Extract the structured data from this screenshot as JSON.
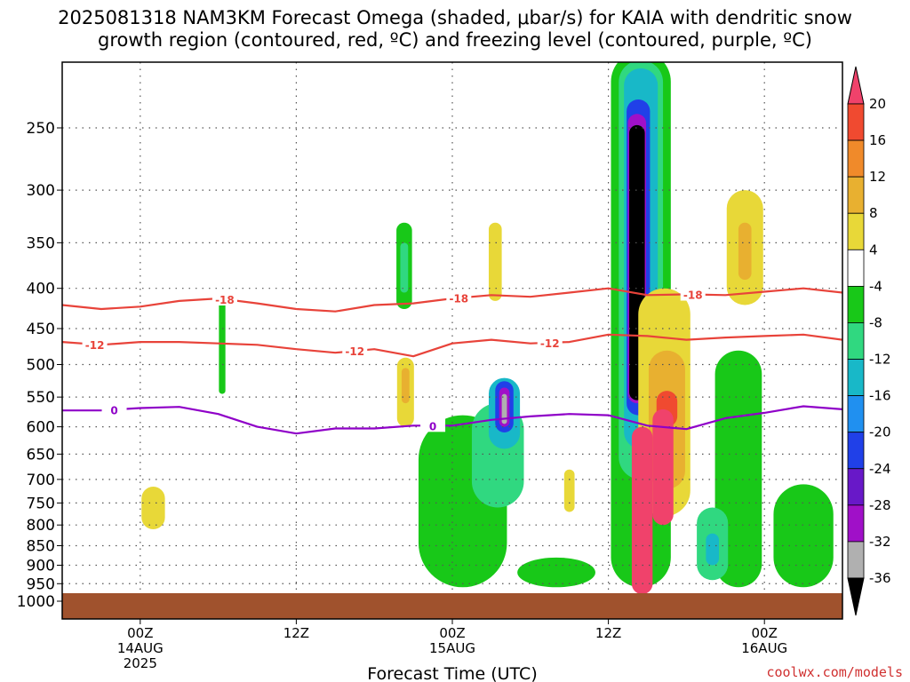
{
  "title_line1": "2025081318 NAM3KM Forecast Omega (shaded, μbar/s) for KAIA with dendritic snow",
  "title_line2": "growth region (contoured, red, ºC) and freezing level (contoured, purple, ºC)",
  "credit": "coolwx.com/models",
  "colors": {
    "ground": "#a0522d",
    "dendritic_contour": "#e8433a",
    "freezing_contour": "#8f00c8",
    "grid": "#555555"
  },
  "chart_data": {
    "type": "heatmap",
    "xlabel": "Forecast Time (UTC)",
    "ylabel": "",
    "x_range_hours": [
      -6,
      54
    ],
    "y_axis": "pressure (hPa), log scale, reversed",
    "y_ticks": [
      "250",
      "300",
      "350",
      "400",
      "450",
      "500",
      "550",
      "600",
      "650",
      "700",
      "750",
      "800",
      "850",
      "900",
      "950",
      "1000"
    ],
    "x_ticks": [
      {
        "hour": 0,
        "line1": "00Z",
        "line2": "14AUG",
        "line3": "2025"
      },
      {
        "hour": 12,
        "line1": "12Z",
        "line2": "",
        "line3": ""
      },
      {
        "hour": 24,
        "line1": "00Z",
        "line2": "15AUG",
        "line3": ""
      },
      {
        "hour": 36,
        "line1": "12Z",
        "line2": "",
        "line3": ""
      },
      {
        "hour": 48,
        "line1": "00Z",
        "line2": "16AUG",
        "line3": ""
      }
    ],
    "grid": true,
    "colorbar": {
      "labels": [
        "20",
        "16",
        "12",
        "8",
        "4",
        "-4",
        "-8",
        "-12",
        "-16",
        "-20",
        "-24",
        "-28",
        "-32",
        "-36"
      ],
      "colors": [
        "#f0426b",
        "#f04a30",
        "#f08a2a",
        "#e8b030",
        "#e8d838",
        "#ffffff",
        "#18c818",
        "#30d880",
        "#18b8c8",
        "#2090f0",
        "#2040e8",
        "#6818c8",
        "#a010c8",
        "#b0b0b0",
        "#000000"
      ]
    },
    "contours": [
      {
        "name": "dendritic -18",
        "label": "-18",
        "color": "#e8433a",
        "hours": [
          -6,
          -3,
          0,
          3,
          6,
          9,
          12,
          15,
          18,
          21,
          24,
          27,
          30,
          33,
          36,
          39,
          42,
          45,
          48,
          51,
          54
        ],
        "pressure": [
          420,
          425,
          422,
          415,
          412,
          418,
          425,
          428,
          420,
          418,
          412,
          408,
          410,
          405,
          400,
          408,
          407,
          408,
          404,
          400,
          405
        ],
        "label_hours": [
          6.5,
          24.5,
          42.5
        ]
      },
      {
        "name": "dendritic -12",
        "label": "-12",
        "color": "#e8433a",
        "hours": [
          -6,
          -3,
          0,
          3,
          6,
          9,
          12,
          15,
          18,
          21,
          24,
          27,
          30,
          33,
          36,
          39,
          42,
          45,
          48,
          51,
          54
        ],
        "pressure": [
          468,
          472,
          468,
          468,
          470,
          472,
          478,
          483,
          478,
          488,
          470,
          465,
          470,
          468,
          458,
          460,
          465,
          462,
          460,
          458,
          465
        ],
        "label_hours": [
          -3.5,
          16.5,
          31.5
        ]
      },
      {
        "name": "freezing 0",
        "label": "0",
        "color": "#8f00c8",
        "hours": [
          -6,
          -3,
          0,
          3,
          6,
          9,
          12,
          15,
          18,
          21,
          24,
          27,
          30,
          33,
          36,
          39,
          42,
          45,
          48,
          51,
          54
        ],
        "pressure": [
          572,
          572,
          568,
          566,
          578,
          600,
          612,
          603,
          603,
          598,
          598,
          588,
          582,
          578,
          580,
          598,
          604,
          585,
          576,
          565,
          570
        ],
        "label_hours": [
          -2,
          22.5
        ]
      }
    ],
    "omega_regions": [
      {
        "category": "4",
        "hour": 1,
        "p_top": 715,
        "p_bottom": 810,
        "width_h": 1.8
      },
      {
        "category": "-4",
        "hour": 6.3,
        "p_top": 410,
        "p_bottom": 545,
        "width_h": 0.5
      },
      {
        "category": "-4",
        "hour": 20.3,
        "p_top": 330,
        "p_bottom": 425,
        "width_h": 1.2
      },
      {
        "category": "-8",
        "hour": 20.3,
        "p_top": 350,
        "p_bottom": 405,
        "width_h": 0.6
      },
      {
        "category": "4",
        "hour": 20.4,
        "p_top": 490,
        "p_bottom": 600,
        "width_h": 1.3
      },
      {
        "category": "8",
        "hour": 20.4,
        "p_top": 505,
        "p_bottom": 560,
        "width_h": 0.6
      },
      {
        "category": "-4",
        "hour": 24.8,
        "p_top": 580,
        "p_bottom": 960,
        "width_h": 6.8
      },
      {
        "category": "-8",
        "hour": 27.5,
        "p_top": 560,
        "p_bottom": 760,
        "width_h": 4.0
      },
      {
        "category": "-12",
        "hour": 28,
        "p_top": 520,
        "p_bottom": 640,
        "width_h": 2.4
      },
      {
        "category": "-20",
        "hour": 28,
        "p_top": 525,
        "p_bottom": 610,
        "width_h": 1.4
      },
      {
        "category": "-28",
        "hour": 28,
        "p_top": 535,
        "p_bottom": 600,
        "width_h": 0.8
      },
      {
        "category": "-32",
        "hour": 28,
        "p_top": 545,
        "p_bottom": 595,
        "width_h": 0.4
      },
      {
        "category": "4",
        "hour": 27.3,
        "p_top": 330,
        "p_bottom": 415,
        "width_h": 1.0
      },
      {
        "category": "4",
        "hour": 33,
        "p_top": 680,
        "p_bottom": 770,
        "width_h": 0.8
      },
      {
        "category": "-4",
        "hour": 38.5,
        "p_top": 200,
        "p_bottom": 960,
        "width_h": 4.6
      },
      {
        "category": "-8",
        "hour": 38.5,
        "p_top": 205,
        "p_bottom": 700,
        "width_h": 3.4
      },
      {
        "category": "-12",
        "hour": 38.5,
        "p_top": 210,
        "p_bottom": 640,
        "width_h": 2.6
      },
      {
        "category": "-20",
        "hour": 38.3,
        "p_top": 230,
        "p_bottom": 580,
        "width_h": 1.8
      },
      {
        "category": "-28",
        "hour": 38.2,
        "p_top": 240,
        "p_bottom": 560,
        "width_h": 1.4
      },
      {
        "category": "-36",
        "hour": 38.2,
        "p_top": 248,
        "p_bottom": 555,
        "width_h": 1.2
      },
      {
        "category": "4",
        "hour": 40.3,
        "p_top": 400,
        "p_bottom": 780,
        "width_h": 4.0
      },
      {
        "category": "8",
        "hour": 40.5,
        "p_top": 480,
        "p_bottom": 720,
        "width_h": 2.8
      },
      {
        "category": "16",
        "hour": 40.5,
        "p_top": 540,
        "p_bottom": 600,
        "width_h": 1.6
      },
      {
        "category": "20",
        "hour": 38.6,
        "p_top": 600,
        "p_bottom": 980,
        "width_h": 1.6
      },
      {
        "category": "20",
        "hour": 40.2,
        "p_top": 570,
        "p_bottom": 800,
        "width_h": 1.6
      },
      {
        "category": "4",
        "hour": 46.5,
        "p_top": 300,
        "p_bottom": 420,
        "width_h": 2.8
      },
      {
        "category": "8",
        "hour": 46.5,
        "p_top": 330,
        "p_bottom": 390,
        "width_h": 1.0
      },
      {
        "category": "-4",
        "hour": 46,
        "p_top": 480,
        "p_bottom": 960,
        "width_h": 3.6
      },
      {
        "category": "-4",
        "hour": 51,
        "p_top": 710,
        "p_bottom": 960,
        "width_h": 4.6
      },
      {
        "category": "-8",
        "hour": 44,
        "p_top": 760,
        "p_bottom": 940,
        "width_h": 2.4
      },
      {
        "category": "-12",
        "hour": 44,
        "p_top": 820,
        "p_bottom": 900,
        "width_h": 1.0
      },
      {
        "category": "-4",
        "hour": 32,
        "p_top": 880,
        "p_bottom": 960,
        "width_h": 6.0
      }
    ]
  }
}
